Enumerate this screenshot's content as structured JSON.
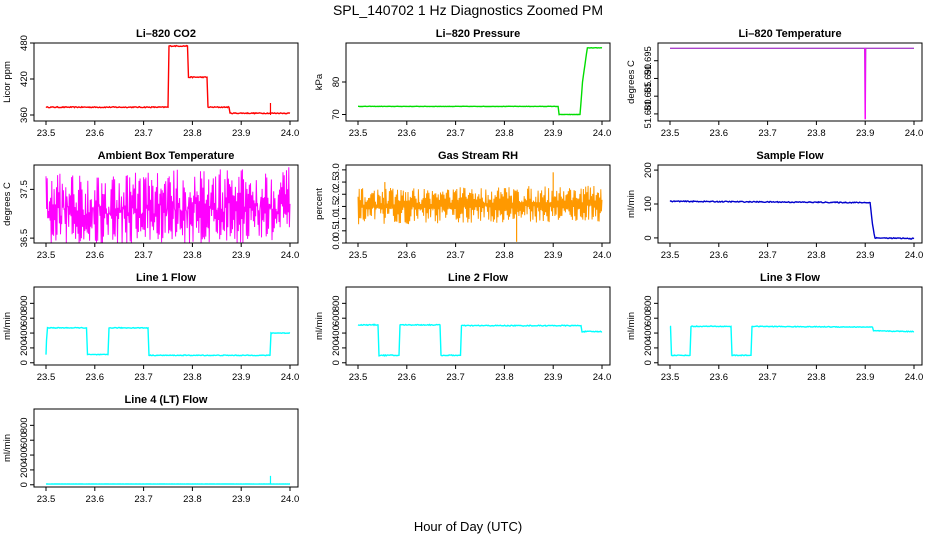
{
  "figure": {
    "title": "SPL_140702  1 Hz Diagnostics Zoomed PM",
    "xlabel": "Hour of Day (UTC)"
  },
  "chart_data": [
    {
      "id": "co2",
      "type": "line",
      "title": "Li–820 CO2",
      "ylabel": "Licor ppm",
      "color": "#ff0000",
      "ylim": [
        350,
        480
      ],
      "yticks": [
        360,
        420,
        480
      ],
      "yticklabels": [
        "360",
        "420",
        "480"
      ],
      "xlim": [
        23.5,
        24.0
      ],
      "xticks": [
        "23.5",
        "23.6",
        "23.7",
        "23.8",
        "23.9",
        "24.0"
      ],
      "noise": 0.8,
      "x": [
        23.5,
        23.75,
        23.752,
        23.79,
        23.792,
        23.83,
        23.832,
        23.875,
        23.877,
        24.0
      ],
      "y": [
        373,
        373,
        475,
        475,
        423,
        423,
        373,
        373,
        363,
        363
      ],
      "spikes": [
        [
          23.96,
          380
        ],
        [
          23.96,
          360
        ],
        [
          23.87,
          372
        ]
      ]
    },
    {
      "id": "pressure",
      "type": "line",
      "title": "Li–820 Pressure",
      "ylabel": "kPa",
      "color": "#00dd00",
      "ylim": [
        68,
        92
      ],
      "yticks": [
        70,
        80
      ],
      "yticklabels": [
        "70",
        "80"
      ],
      "xlim": [
        23.5,
        24.0
      ],
      "xticks": [
        "23.5",
        "23.6",
        "23.7",
        "23.8",
        "23.9",
        "24.0"
      ],
      "noise": 0.05,
      "x": [
        23.5,
        23.91,
        23.912,
        23.955,
        23.96,
        23.97,
        24.0
      ],
      "y": [
        72.5,
        72.5,
        70,
        70,
        80,
        90.5,
        90.5
      ],
      "spikes": []
    },
    {
      "id": "licor-temp",
      "type": "line",
      "title": "Li–820 Temperature",
      "ylabel": "degrees C",
      "color": "#ff00ff",
      "ylim": [
        51.678,
        51.7
      ],
      "yticks": [
        51.68,
        51.685,
        51.69,
        51.695
      ],
      "yticklabels": [
        "51.680",
        "51.685",
        "51.690",
        "51.695"
      ],
      "xlim": [
        23.5,
        24.0
      ],
      "xticks": [
        "23.5",
        "23.6",
        "23.7",
        "23.8",
        "23.9",
        "24.0"
      ],
      "noise": 0,
      "x": [
        23.5,
        23.899,
        23.9,
        23.901,
        24.0
      ],
      "y": [
        51.6985,
        51.6985,
        51.6785,
        51.6985,
        51.6985
      ],
      "line_color": "#aa44cc",
      "spikes": []
    },
    {
      "id": "ambient-temp",
      "type": "line",
      "title": "Ambient Box Temperature",
      "ylabel": "degrees C",
      "color": "#ff00ff",
      "ylim": [
        36.4,
        38.0
      ],
      "yticks": [
        36.5,
        37.5
      ],
      "yticklabels": [
        "36.5",
        "37.5"
      ],
      "xlim": [
        23.5,
        24.0
      ],
      "xticks": [
        "23.5",
        "23.6",
        "23.7",
        "23.8",
        "23.9",
        "24.0"
      ],
      "noise": 0,
      "band": {
        "low": 36.7,
        "high": 37.4,
        "spread": 0.45
      },
      "x": [
        23.5,
        24.0
      ],
      "y": [
        37.0,
        37.0
      ],
      "spikes": []
    },
    {
      "id": "rh",
      "type": "line",
      "title": "Gas Stream RH",
      "ylabel": "percent",
      "color": "#ff9900",
      "ylim": [
        0,
        3.2
      ],
      "yticks": [
        0.0,
        0.5,
        1.0,
        1.5,
        2.0,
        2.5,
        3.0
      ],
      "yticklabels": [
        "0.0",
        "0.5",
        "1.0",
        "1.5",
        "2.0",
        "2.5",
        "3.0"
      ],
      "xlim": [
        23.5,
        24.0
      ],
      "xticks": [
        "23.5",
        "23.6",
        "23.7",
        "23.8",
        "23.9",
        "24.0"
      ],
      "noise": 0,
      "band": {
        "low": 1.1,
        "high": 1.9,
        "spread": 0.35
      },
      "x": [
        23.5,
        24.0
      ],
      "y": [
        1.5,
        1.5
      ],
      "spikes": [
        [
          23.9,
          2.9
        ],
        [
          23.825,
          0.05
        ],
        [
          23.555,
          2.5
        ]
      ]
    },
    {
      "id": "sample-flow",
      "type": "line",
      "title": "Sample Flow",
      "ylabel": "ml/min",
      "color": "#0000cc",
      "ylim": [
        -15,
        215
      ],
      "yticks": [
        0,
        100,
        200
      ],
      "yticklabels": [
        "0",
        "100",
        "200"
      ],
      "xlim": [
        23.5,
        24.0
      ],
      "xticks": [
        "23.5",
        "23.6",
        "23.7",
        "23.8",
        "23.9",
        "24.0"
      ],
      "noise": 1.5,
      "x": [
        23.5,
        23.91,
        23.915,
        23.92,
        24.0
      ],
      "y": [
        108,
        104,
        40,
        0,
        -2
      ],
      "spikes": []
    },
    {
      "id": "line1-flow",
      "type": "line",
      "title": "Line 1 Flow",
      "ylabel": "ml/min",
      "color": "#00ffff",
      "ylim": [
        -30,
        1020
      ],
      "yticks": [
        0,
        200,
        400,
        600,
        800
      ],
      "yticklabels": [
        "0",
        "200",
        "400",
        "600",
        "800"
      ],
      "xlim": [
        23.5,
        24.0
      ],
      "xticks": [
        "23.5",
        "23.6",
        "23.7",
        "23.8",
        "23.9",
        "24.0"
      ],
      "noise": 5,
      "x": [
        23.5,
        23.501,
        23.503,
        23.583,
        23.585,
        23.627,
        23.629,
        23.709,
        23.711,
        23.959,
        23.961,
        24.0
      ],
      "y": [
        110,
        300,
        470,
        470,
        110,
        110,
        470,
        470,
        100,
        100,
        400,
        400
      ],
      "spikes": []
    },
    {
      "id": "line2-flow",
      "type": "line",
      "title": "Line 2 Flow",
      "ylabel": "ml/min",
      "color": "#00ffff",
      "ylim": [
        -30,
        1020
      ],
      "yticks": [
        0,
        200,
        400,
        600,
        800
      ],
      "yticklabels": [
        "0",
        "200",
        "400",
        "600",
        "800"
      ],
      "xlim": [
        23.5,
        24.0
      ],
      "xticks": [
        "23.5",
        "23.6",
        "23.7",
        "23.8",
        "23.9",
        "24.0"
      ],
      "noise": 6,
      "x": [
        23.5,
        23.541,
        23.543,
        23.584,
        23.586,
        23.668,
        23.67,
        23.71,
        23.712,
        23.957,
        23.959,
        24.0
      ],
      "y": [
        510,
        510,
        100,
        100,
        510,
        510,
        100,
        100,
        500,
        500,
        420,
        420
      ],
      "spikes": []
    },
    {
      "id": "line3-flow",
      "type": "line",
      "title": "Line 3 Flow",
      "ylabel": "ml/min",
      "color": "#00ffff",
      "ylim": [
        -30,
        1020
      ],
      "yticks": [
        0,
        200,
        400,
        600,
        800
      ],
      "yticklabels": [
        "0",
        "200",
        "400",
        "600",
        "800"
      ],
      "xlim": [
        23.5,
        24.0
      ],
      "xticks": [
        "23.5",
        "23.6",
        "23.7",
        "23.8",
        "23.9",
        "24.0"
      ],
      "noise": 5,
      "x": [
        23.5,
        23.501,
        23.503,
        23.541,
        23.543,
        23.625,
        23.627,
        23.666,
        23.668,
        23.915,
        23.917,
        24.0
      ],
      "y": [
        490,
        490,
        100,
        100,
        490,
        490,
        100,
        100,
        490,
        480,
        430,
        420
      ],
      "spikes": []
    },
    {
      "id": "line4-flow",
      "type": "line",
      "title": "Line 4 (LT) Flow",
      "ylabel": "ml/min",
      "color": "#00ffff",
      "ylim": [
        -30,
        1020
      ],
      "yticks": [
        0,
        200,
        400,
        600,
        800
      ],
      "yticklabels": [
        "0",
        "200",
        "400",
        "600",
        "800"
      ],
      "xlim": [
        23.5,
        24.0
      ],
      "xticks": [
        "23.5",
        "23.6",
        "23.7",
        "23.8",
        "23.9",
        "24.0"
      ],
      "noise": 1,
      "x": [
        23.5,
        24.0
      ],
      "y": [
        10,
        10
      ],
      "spikes": [
        [
          23.96,
          120
        ]
      ]
    }
  ]
}
